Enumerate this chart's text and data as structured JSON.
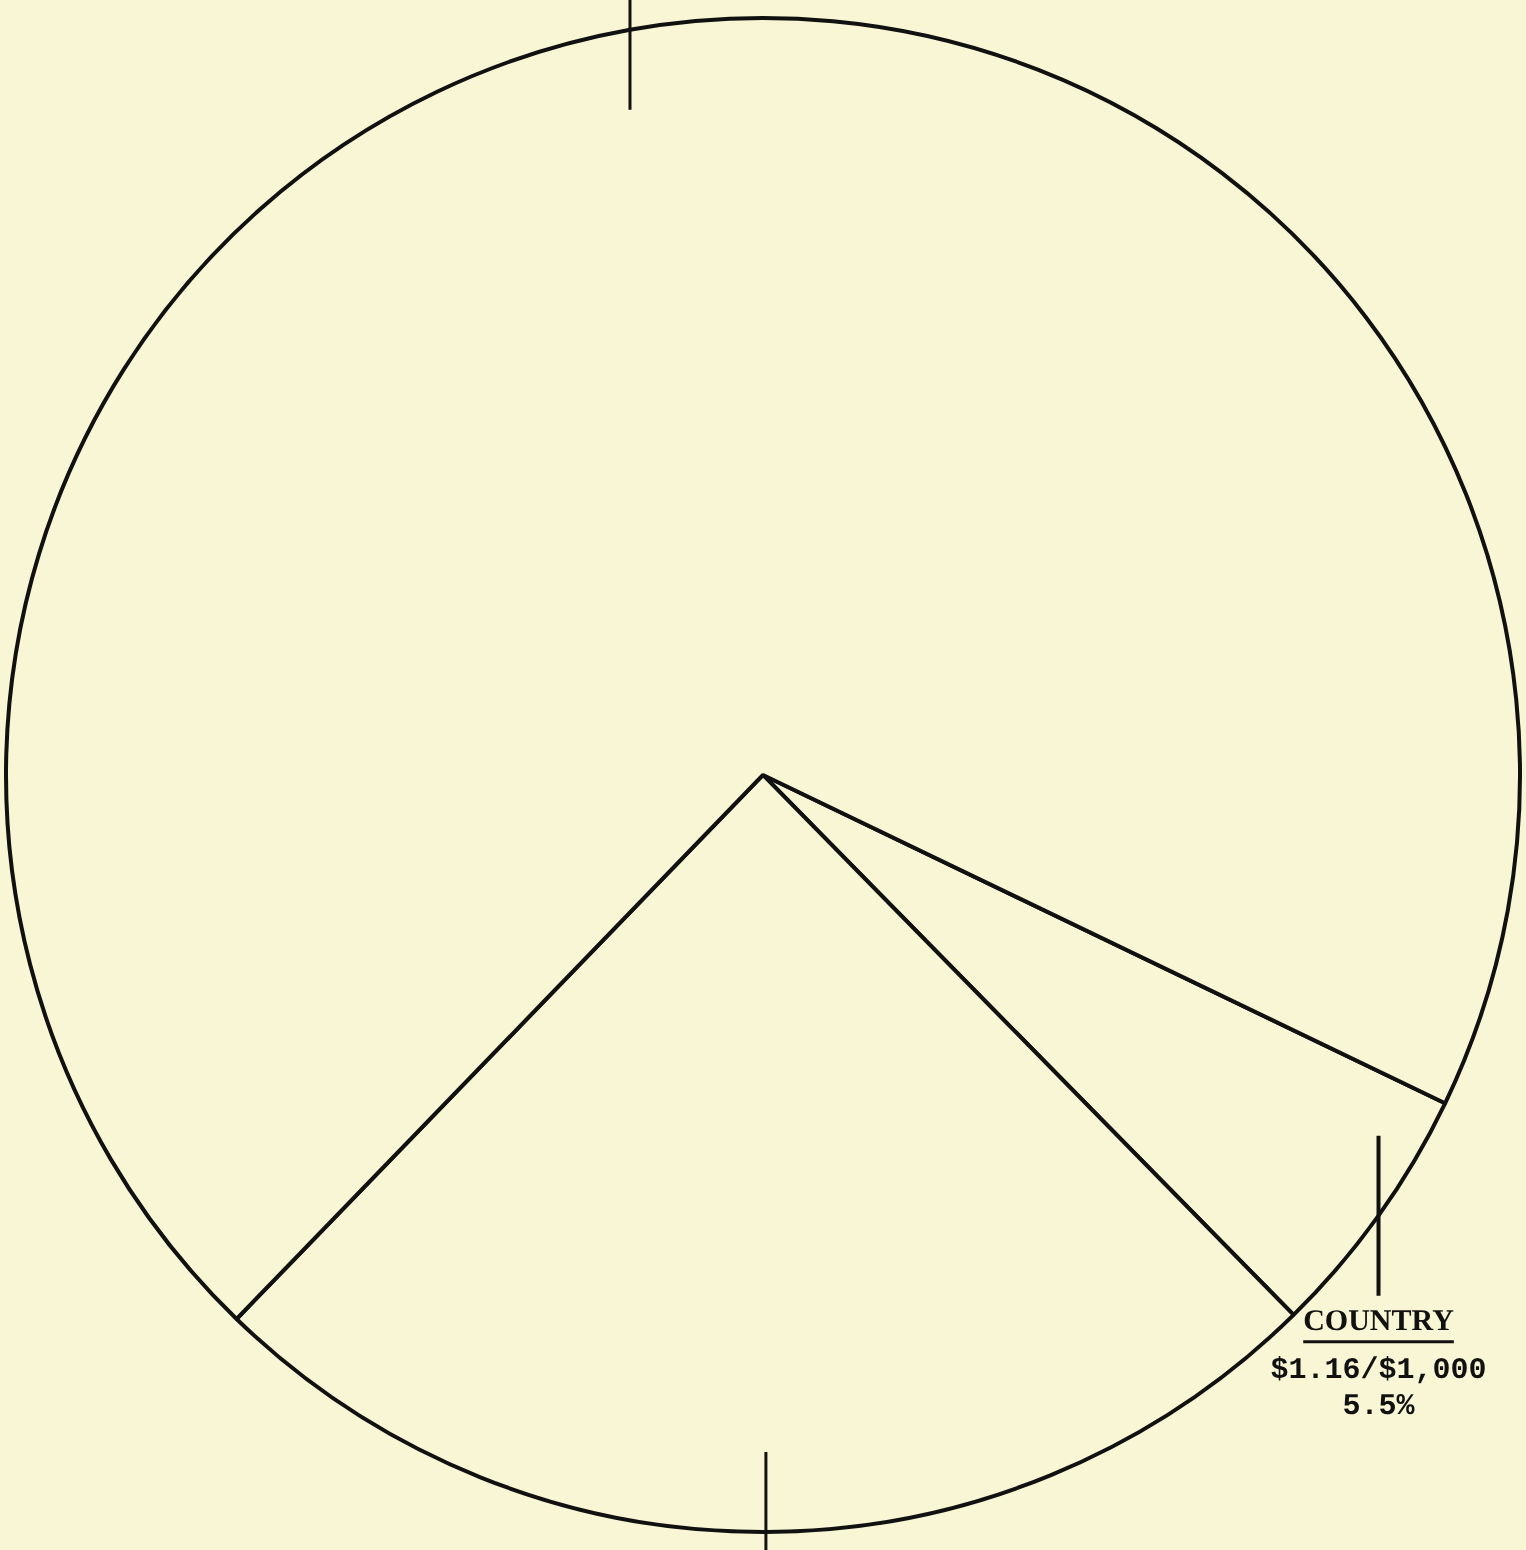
{
  "chart_data": {
    "type": "pie",
    "categories": [
      "COUNTRY",
      null,
      null
    ],
    "values": [
      5.5,
      24.6,
      69.9
    ],
    "colors": [
      "#f8f6d4",
      "#f8f6d4",
      "#f8f6d4"
    ],
    "value_labels": [
      "5.5%",
      null,
      null
    ],
    "annotations": [
      "$1.16/$1,000"
    ],
    "legend": false
  }
}
